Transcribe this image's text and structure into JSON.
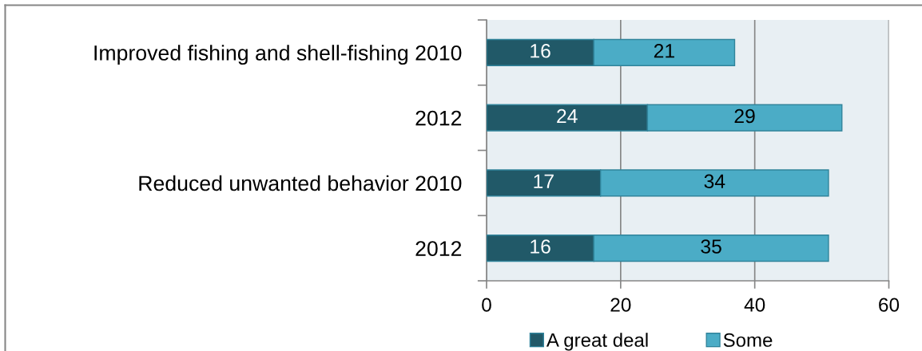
{
  "chart_data": {
    "type": "bar",
    "orientation": "horizontal",
    "stacked": true,
    "categories": [
      "Improved fishing and shell-fishing 2010",
      "2012",
      "Reduced unwanted behavior 2010",
      "2012"
    ],
    "series": [
      {
        "name": "A great deal",
        "color": "#215968",
        "values": [
          16,
          24,
          17,
          16
        ]
      },
      {
        "name": "Some",
        "color": "#4bacc6",
        "values": [
          21,
          29,
          34,
          35
        ]
      }
    ],
    "xlim": [
      0,
      60
    ],
    "xticks": [
      0,
      20,
      40,
      60
    ],
    "grid": "x",
    "legend": "bottom",
    "data_labels": true
  }
}
